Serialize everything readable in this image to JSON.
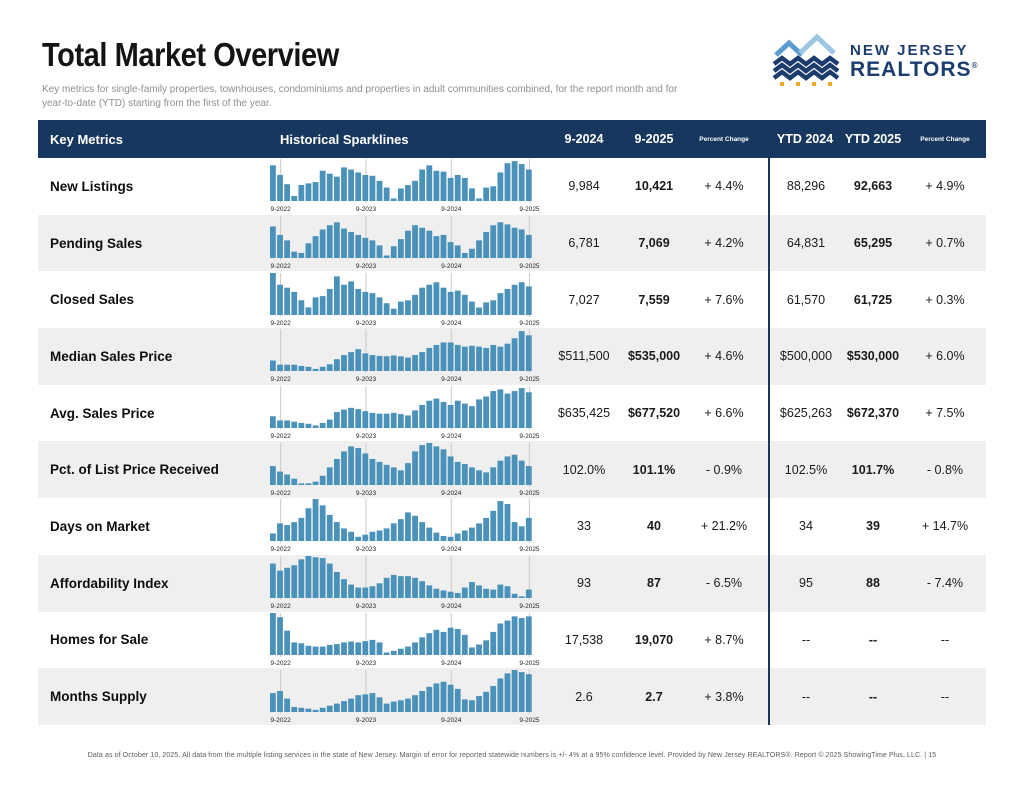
{
  "page": {
    "title": "Total Market Overview",
    "subtitle": "Key metrics for single-family properties, townhouses, condominiums and properties in adult communities combined, for the report month and for year-to-date (YTD) starting from the first of the year.",
    "footer": "Data as of October 10, 2025. All data from the multiple listing services in the state of New Jersey. Margin of error for reported statewide numbers is +/- 4% at a 95% confidence level. Provided by New Jersey REALTORS®. Report © 2025 ShowingTime Plus, LLC.",
    "footer_separator": " | ",
    "page_number": "15"
  },
  "logo": {
    "line1": "NEW JERSEY",
    "line2": "REALTORS",
    "registered": "®"
  },
  "colors": {
    "header_bg": "#17375e",
    "bar": "#4b92ba",
    "stripe": "#efefef",
    "divider": "#17375e",
    "gridline": "#c9c9c9",
    "axis_label": "#222222",
    "logo_navy": "#1d3c6e",
    "logo_light_blue": "#9dc6e3",
    "logo_mid_blue": "#5b9bd0",
    "logo_orange": "#f5a81c"
  },
  "table": {
    "headers": {
      "key_metrics": "Key Metrics",
      "sparklines": "Historical Sparklines",
      "m_prev": "9-2024",
      "m_curr": "9-2025",
      "pct": "Percent Change",
      "ytd_prev": "YTD 2024",
      "ytd_curr": "YTD 2025",
      "ytd_pct": "Percent Change"
    },
    "axis_labels": [
      "9-2022",
      "9-2023",
      "9-2024",
      "9-2025"
    ],
    "rows": [
      {
        "metric": "New Listings",
        "m_prev": "9,984",
        "m_curr": "10,421",
        "pct": "+ 4.4%",
        "ytd_prev": "88,296",
        "ytd_curr": "92,663",
        "ytd_pct": "+ 4.9%",
        "spark": [
          85,
          62,
          40,
          12,
          38,
          42,
          45,
          72,
          65,
          58,
          80,
          75,
          68,
          62,
          60,
          48,
          32,
          6,
          30,
          38,
          48,
          75,
          85,
          72,
          70,
          55,
          62,
          55,
          30,
          6,
          32,
          35,
          68,
          90,
          95,
          88,
          75
        ]
      },
      {
        "metric": "Pending Sales",
        "m_prev": "6,781",
        "m_curr": "7,069",
        "pct": "+ 4.2%",
        "ytd_prev": "64,831",
        "ytd_curr": "65,295",
        "ytd_pct": "+ 0.7%",
        "spark": [
          75,
          55,
          42,
          15,
          12,
          35,
          52,
          68,
          78,
          85,
          70,
          62,
          55,
          48,
          42,
          30,
          6,
          28,
          45,
          65,
          78,
          72,
          65,
          52,
          55,
          38,
          30,
          12,
          22,
          42,
          62,
          78,
          85,
          80,
          72,
          68,
          55
        ]
      },
      {
        "metric": "Closed Sales",
        "m_prev": "7,027",
        "m_curr": "7,559",
        "pct": "+ 7.6%",
        "ytd_prev": "61,570",
        "ytd_curr": "61,725",
        "ytd_pct": "+ 0.3%",
        "spark": [
          100,
          72,
          65,
          55,
          35,
          18,
          42,
          45,
          62,
          92,
          72,
          80,
          62,
          55,
          52,
          42,
          28,
          15,
          32,
          35,
          48,
          65,
          72,
          78,
          65,
          55,
          58,
          48,
          32,
          18,
          30,
          35,
          52,
          62,
          72,
          78,
          68
        ]
      },
      {
        "metric": "Median Sales Price",
        "m_prev": "$511,500",
        "m_curr": "$535,000",
        "pct": "+ 4.6%",
        "ytd_prev": "$500,000",
        "ytd_curr": "$530,000",
        "ytd_pct": "+ 6.0%",
        "spark": [
          25,
          15,
          15,
          15,
          12,
          10,
          5,
          10,
          16,
          28,
          38,
          45,
          52,
          42,
          38,
          36,
          35,
          37,
          35,
          32,
          38,
          45,
          55,
          62,
          68,
          68,
          62,
          58,
          60,
          58,
          55,
          62,
          58,
          65,
          78,
          95,
          85
        ]
      },
      {
        "metric": "Avg. Sales Price",
        "m_prev": "$635,425",
        "m_curr": "$677,520",
        "pct": "+ 6.6%",
        "ytd_prev": "$625,263",
        "ytd_curr": "$672,370",
        "ytd_pct": "+ 7.5%",
        "spark": [
          28,
          18,
          18,
          15,
          12,
          10,
          6,
          12,
          20,
          38,
          44,
          48,
          45,
          40,
          36,
          34,
          34,
          36,
          33,
          30,
          42,
          55,
          65,
          70,
          62,
          55,
          65,
          58,
          52,
          68,
          75,
          88,
          92,
          82,
          88,
          95,
          85
        ]
      },
      {
        "metric": "Pct. of List Price Received",
        "m_prev": "102.0%",
        "m_curr": "101.1%",
        "pct": "- 0.9%",
        "ytd_prev": "102.5%",
        "ytd_curr": "101.7%",
        "ytd_pct": "- 0.8%",
        "spark": [
          45,
          32,
          25,
          15,
          4,
          4,
          8,
          22,
          42,
          62,
          80,
          92,
          88,
          75,
          62,
          55,
          48,
          42,
          35,
          52,
          80,
          95,
          100,
          92,
          85,
          68,
          55,
          50,
          42,
          35,
          30,
          42,
          58,
          68,
          72,
          58,
          45
        ]
      },
      {
        "metric": "Days on Market",
        "m_prev": "33",
        "m_curr": "40",
        "pct": "+ 21.2%",
        "ytd_prev": "34",
        "ytd_curr": "39",
        "ytd_pct": "+ 14.7%",
        "spark": [
          18,
          42,
          38,
          45,
          55,
          78,
          100,
          85,
          62,
          45,
          30,
          22,
          10,
          15,
          22,
          25,
          30,
          42,
          52,
          68,
          60,
          45,
          32,
          20,
          12,
          10,
          18,
          25,
          32,
          42,
          55,
          72,
          95,
          88,
          45,
          35,
          55
        ]
      },
      {
        "metric": "Affordability Index",
        "m_prev": "93",
        "m_curr": "87",
        "pct": "- 6.5%",
        "ytd_prev": "95",
        "ytd_curr": "88",
        "ytd_pct": "- 7.4%",
        "spark": [
          82,
          65,
          72,
          78,
          92,
          100,
          97,
          95,
          82,
          62,
          45,
          32,
          25,
          25,
          28,
          35,
          48,
          55,
          52,
          52,
          48,
          40,
          30,
          22,
          18,
          15,
          12,
          25,
          38,
          30,
          22,
          20,
          32,
          28,
          10,
          4,
          20
        ]
      },
      {
        "metric": "Homes for Sale",
        "m_prev": "17,538",
        "m_curr": "19,070",
        "pct": "+ 8.7%",
        "ytd_prev": "--",
        "ytd_curr": "--",
        "ytd_pct": "--",
        "spark": [
          100,
          90,
          58,
          30,
          28,
          22,
          20,
          20,
          24,
          26,
          30,
          32,
          30,
          33,
          36,
          30,
          6,
          10,
          15,
          20,
          30,
          42,
          52,
          60,
          55,
          65,
          62,
          48,
          18,
          25,
          35,
          55,
          75,
          82,
          92,
          88,
          92
        ]
      },
      {
        "metric": "Months Supply",
        "m_prev": "2.6",
        "m_curr": "2.7",
        "pct": "+ 3.8%",
        "ytd_prev": "--",
        "ytd_curr": "--",
        "ytd_pct": "--",
        "spark": [
          45,
          50,
          32,
          12,
          10,
          8,
          5,
          10,
          15,
          20,
          26,
          32,
          40,
          42,
          45,
          35,
          20,
          25,
          28,
          32,
          40,
          50,
          60,
          68,
          72,
          65,
          55,
          30,
          28,
          38,
          48,
          62,
          80,
          92,
          100,
          95,
          90
        ]
      }
    ]
  }
}
